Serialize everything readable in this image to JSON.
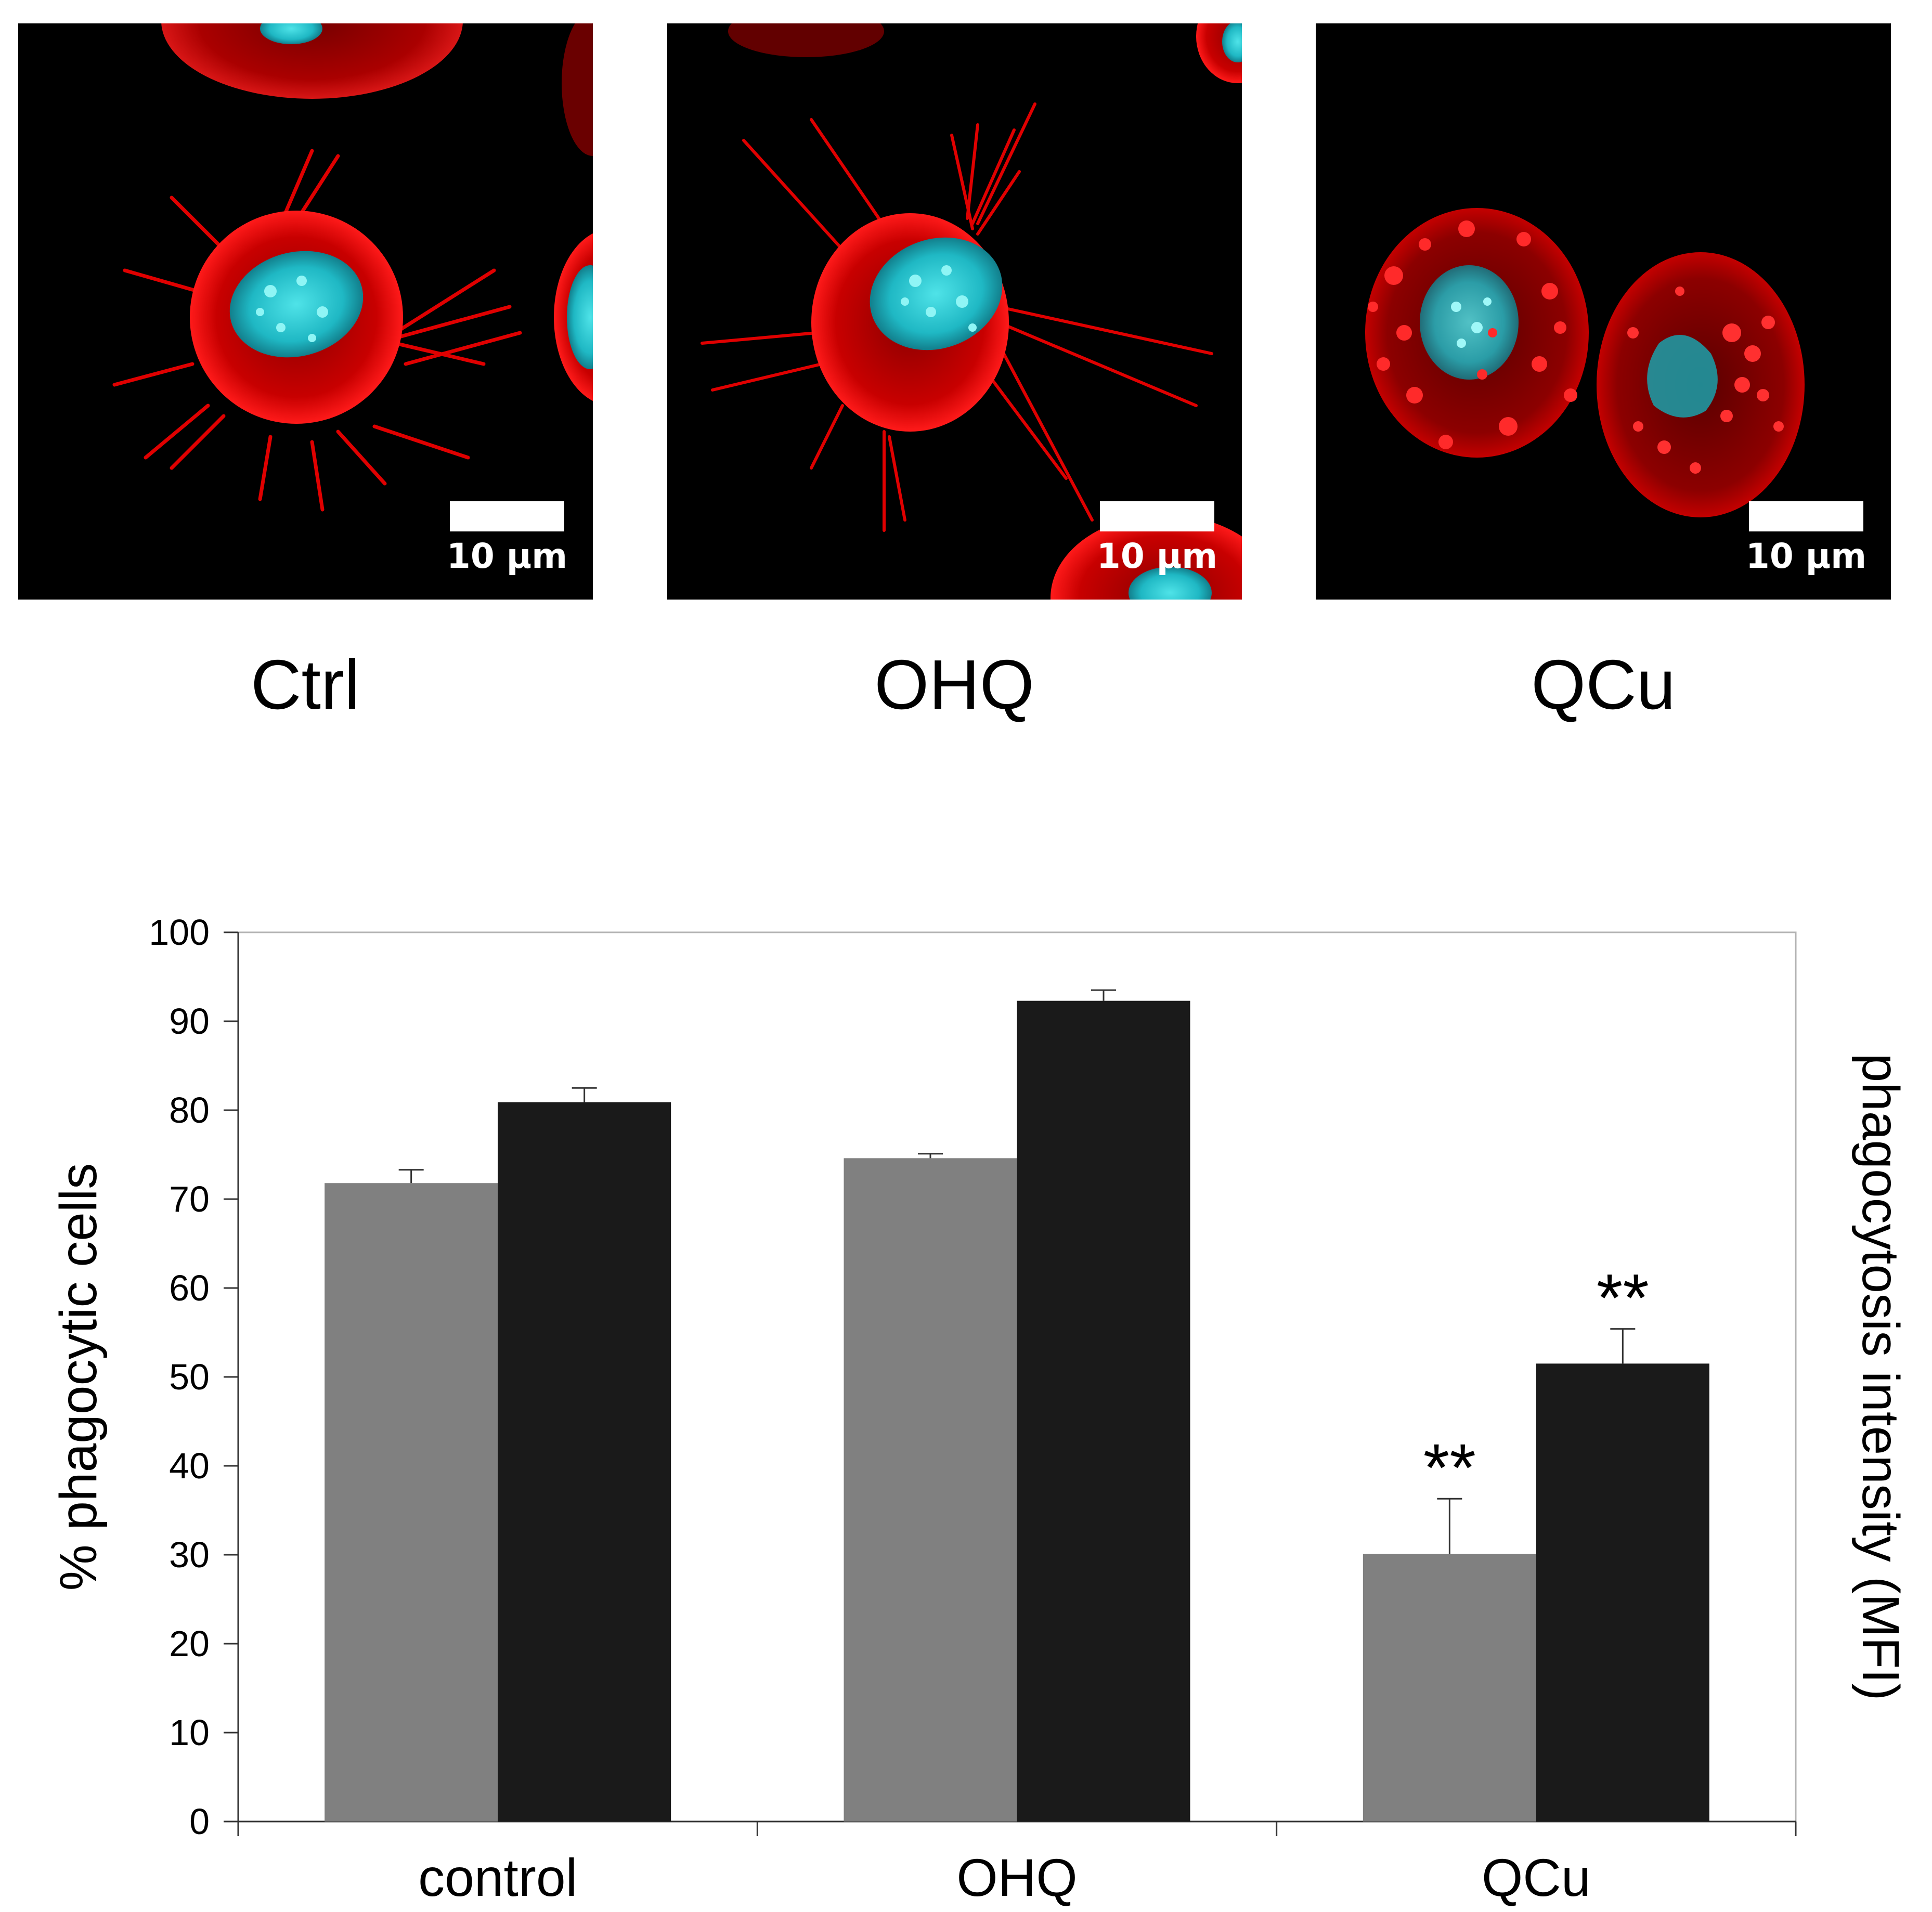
{
  "panels": [
    {
      "label": "Ctrl",
      "scale_bar": "10 µm"
    },
    {
      "label": "OHQ",
      "scale_bar": "10 µm"
    },
    {
      "label": "QCu",
      "scale_bar": "10 µm"
    }
  ],
  "chart_data": {
    "type": "bar",
    "categories": [
      "control",
      "OHQ",
      "QCu"
    ],
    "series": [
      {
        "color": "#808080",
        "values": [
          71.8,
          74.6,
          30.1
        ],
        "errors": [
          1.5,
          0.5,
          6.2
        ]
      },
      {
        "color": "#1a1a1a",
        "values": [
          80.9,
          92.3,
          51.5
        ],
        "errors": [
          1.6,
          1.2,
          3.9
        ]
      }
    ],
    "annotations": [
      {
        "category": "QCu",
        "series": 0,
        "text": "**"
      },
      {
        "category": "QCu",
        "series": 1,
        "text": "**"
      }
    ],
    "ylabel": "% phagocytic cells",
    "ylabel_right": "phagocytosis intensity (MFI)",
    "ylim": [
      0,
      100
    ],
    "yticks": [
      0,
      10,
      20,
      30,
      40,
      50,
      60,
      70,
      80,
      90,
      100
    ],
    "grid": false,
    "legend": "none"
  }
}
